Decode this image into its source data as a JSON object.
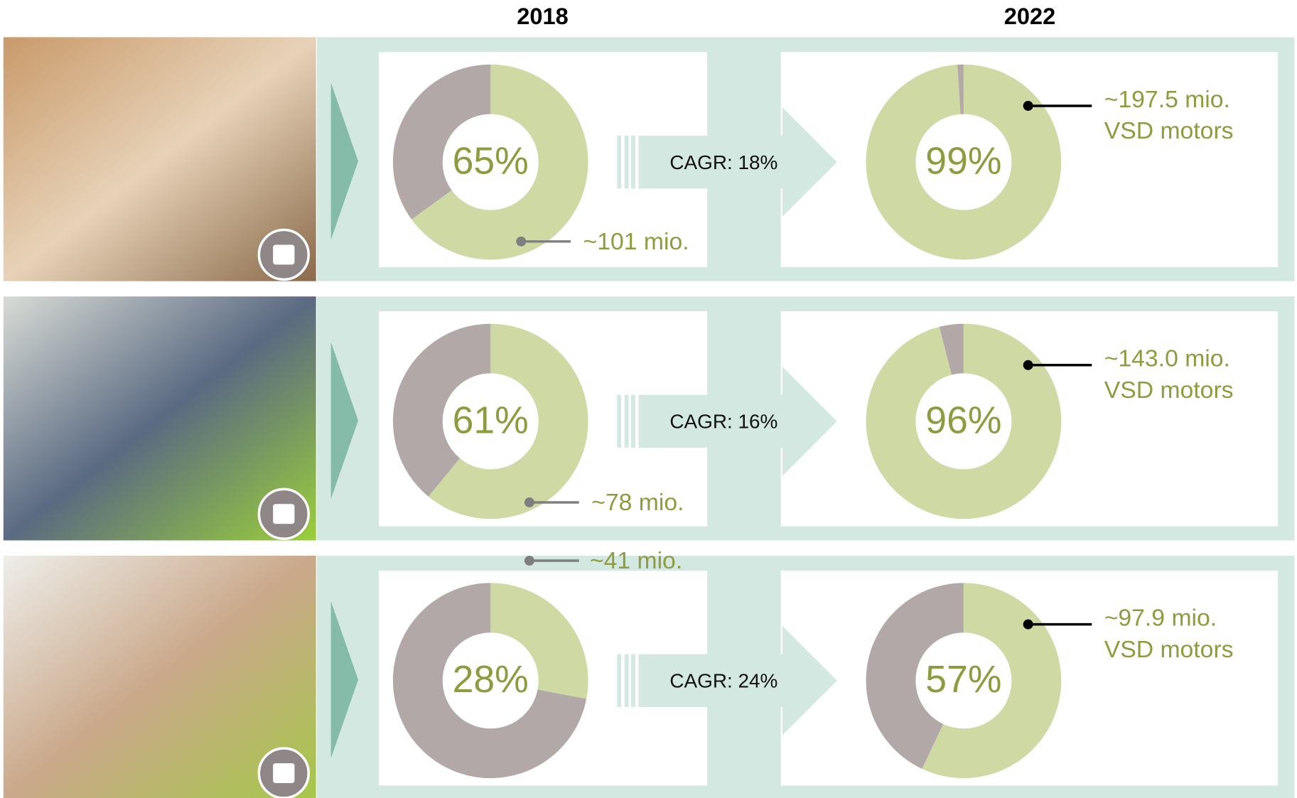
{
  "headers": [
    "2018",
    "2022"
  ],
  "cagr": [
    "CAGR: 18%",
    "CAGR: 16%",
    "CAGR: 24%"
  ],
  "chart_data": [
    {
      "type": "pie",
      "values": [
        65,
        35
      ],
      "colors": [
        "#cfd9a3",
        "#b2a8a8"
      ],
      "value_labels": [
        "65%",
        null
      ],
      "annotation": [
        "~101 mio."
      ]
    },
    {
      "type": "pie",
      "values": [
        99,
        1
      ],
      "colors": [
        "#cfd9a3",
        "#b2a8a8"
      ],
      "value_labels": [
        "99%",
        null
      ],
      "annotation": [
        "~197.5 mio.",
        "VSD motors"
      ]
    },
    {
      "type": "pie",
      "values": [
        61,
        39
      ],
      "colors": [
        "#cfd9a3",
        "#b2a8a8"
      ],
      "value_labels": [
        "61%",
        null
      ],
      "annotation": [
        "~78 mio."
      ]
    },
    {
      "type": "pie",
      "values": [
        96,
        4
      ],
      "colors": [
        "#cfd9a3",
        "#b2a8a8"
      ],
      "value_labels": [
        "96%",
        null
      ],
      "annotation": [
        "~143.0 mio.",
        "VSD motors"
      ]
    },
    {
      "type": "pie",
      "values": [
        28,
        72
      ],
      "colors": [
        "#cfd9a3",
        "#b2a8a8"
      ],
      "value_labels": [
        "28%",
        null
      ],
      "annotation": [
        "~41 mio."
      ]
    },
    {
      "type": "pie",
      "values": [
        57,
        43
      ],
      "colors": [
        "#cfd9a3",
        "#b2a8a8"
      ],
      "value_labels": [
        "57%",
        null
      ],
      "annotation": [
        "~97.9 mio.",
        "VSD motors"
      ]
    }
  ]
}
